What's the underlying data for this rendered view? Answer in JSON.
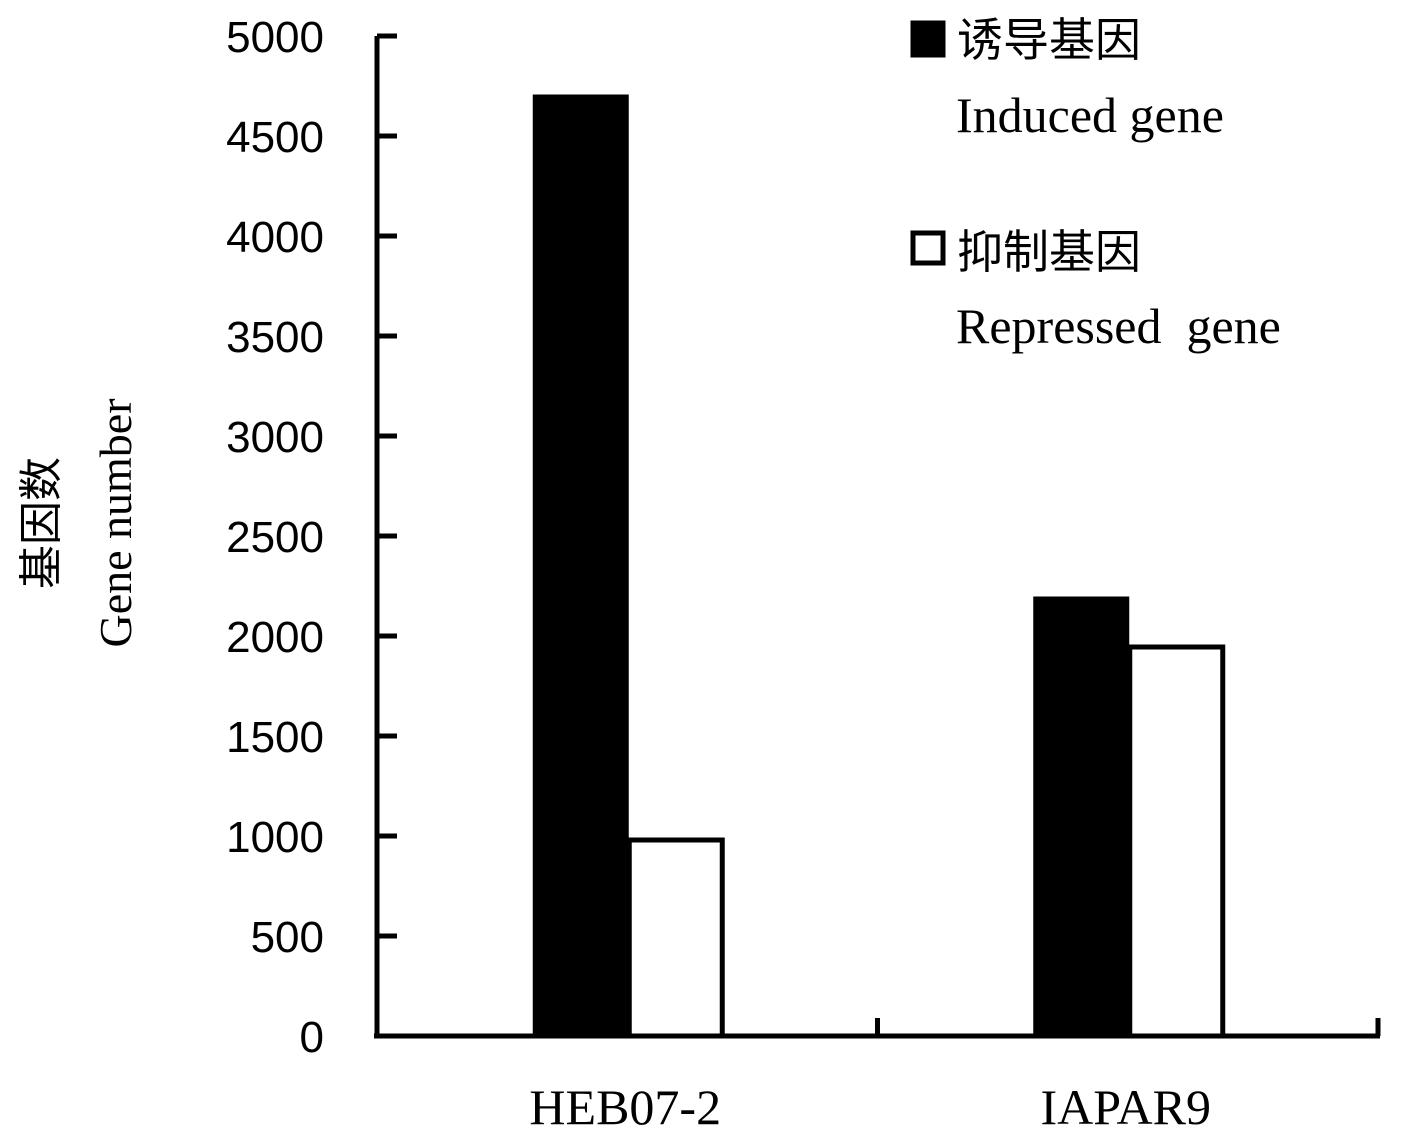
{
  "chart_data": {
    "type": "bar",
    "title": "",
    "xlabel": "",
    "ylabel_zh": "基因数",
    "ylabel_en": "Gene number",
    "ylim": [
      0,
      5000
    ],
    "yticks": [
      "0",
      "500",
      "1000",
      "1500",
      "2000",
      "2500",
      "3000",
      "3500",
      "4000",
      "4500",
      "5000"
    ],
    "categories": [
      "HEB07-2",
      "IAPAR9"
    ],
    "series": [
      {
        "name_zh": "诱导基因",
        "name_en": "Induced gene",
        "fill": "#000000",
        "values": [
          4700,
          2190
        ]
      },
      {
        "name_zh": "抑制基因",
        "name_en": "Repressed  gene",
        "fill": "#ffffff",
        "values": [
          980,
          1945
        ]
      }
    ],
    "grid": false,
    "legend_position": "top-right"
  }
}
